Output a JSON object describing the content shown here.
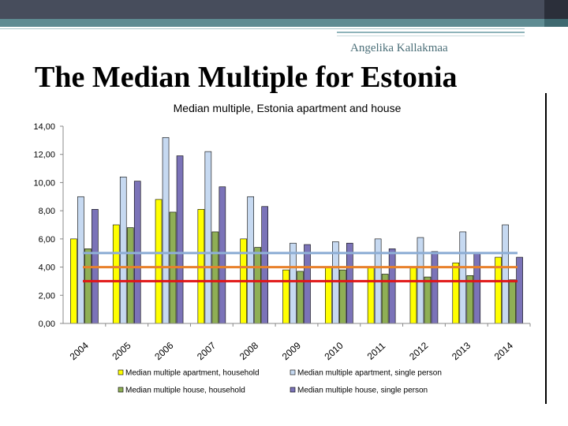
{
  "slide": {
    "author": "Angelika Kallakmaa",
    "title": "The Median Multiple for Estonia"
  },
  "chart_data": {
    "type": "bar",
    "title": "Median multiple, Estonia apartment and  house",
    "categories": [
      "2004",
      "2005",
      "2006",
      "2007",
      "2008",
      "2009",
      "2010",
      "2011",
      "2012",
      "2013",
      "2014"
    ],
    "ylim": [
      0,
      14
    ],
    "yticks": [
      "0,00",
      "2,00",
      "4,00",
      "6,00",
      "8,00",
      "10,00",
      "12,00",
      "14,00"
    ],
    "series": [
      {
        "name": "Median multiple apartment, household",
        "color": "#ffff00",
        "values": [
          6.0,
          7.0,
          8.8,
          8.1,
          6.0,
          3.8,
          4.0,
          4.0,
          4.0,
          4.3,
          4.7
        ]
      },
      {
        "name": "Median multiple apartment, single person",
        "color": "#c6d9f1",
        "values": [
          9.0,
          10.4,
          13.2,
          12.2,
          9.0,
          5.7,
          5.8,
          6.0,
          6.1,
          6.5,
          7.0
        ]
      },
      {
        "name": "Median multiple house, household",
        "color": "#8faf55",
        "values": [
          5.3,
          6.8,
          7.9,
          6.5,
          5.4,
          3.7,
          3.8,
          3.5,
          3.3,
          3.4,
          3.1
        ]
      },
      {
        "name": "Median multiple house, single person",
        "color": "#7b73b8",
        "values": [
          8.1,
          10.1,
          11.9,
          9.7,
          8.3,
          5.6,
          5.7,
          5.3,
          5.1,
          5.0,
          4.7
        ]
      }
    ],
    "reference_lines": [
      {
        "value": 5.0,
        "color": "#8eaed5"
      },
      {
        "value": 4.0,
        "color": "#e8812b"
      },
      {
        "value": 3.0,
        "color": "#e11515"
      }
    ]
  }
}
